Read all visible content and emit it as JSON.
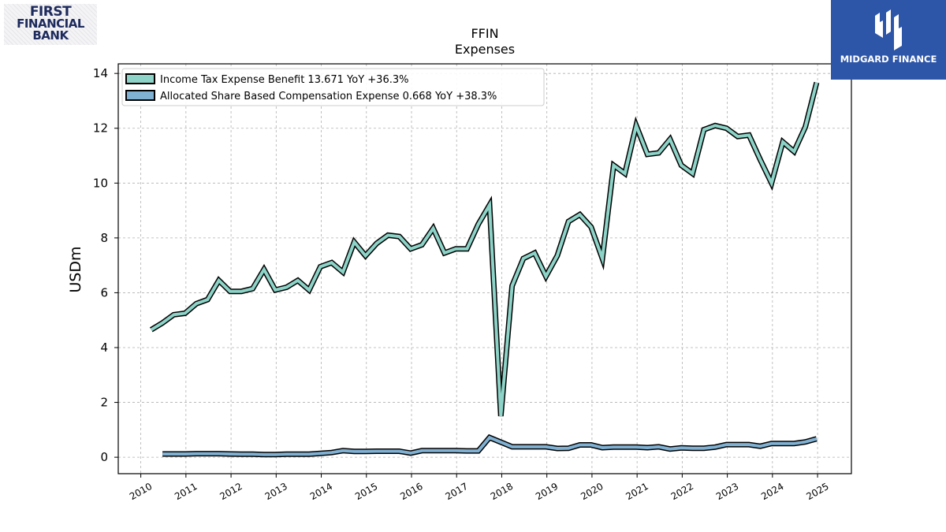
{
  "logos": {
    "left": [
      "FIRST",
      "FINANCIAL",
      "BANK"
    ],
    "right": "MIDGARD FINANCE"
  },
  "chart_data": {
    "type": "line",
    "title": "FFIN",
    "subtitle": "Expenses",
    "ylabel": "USDm",
    "xlabel": "",
    "xlim": [
      2009.5,
      2025.75
    ],
    "ylim": [
      -0.6,
      14.35
    ],
    "yticks": [
      0,
      2,
      4,
      6,
      8,
      10,
      12,
      14
    ],
    "xticks": [
      2010,
      2011,
      2012,
      2013,
      2014,
      2015,
      2016,
      2017,
      2018,
      2019,
      2020,
      2021,
      2022,
      2023,
      2024,
      2025
    ],
    "grid": true,
    "legend_position": "top-left",
    "series": [
      {
        "name": "Income Tax Expense Benefit  13.671 YoY +36.3%",
        "color": "#8dd3c7",
        "x": [
          2010.23,
          2010.48,
          2010.73,
          2010.98,
          2011.23,
          2011.48,
          2011.73,
          2011.98,
          2012.23,
          2012.48,
          2012.73,
          2012.98,
          2013.23,
          2013.48,
          2013.73,
          2013.98,
          2014.23,
          2014.48,
          2014.73,
          2014.98,
          2015.23,
          2015.48,
          2015.73,
          2015.98,
          2016.23,
          2016.48,
          2016.73,
          2016.98,
          2017.23,
          2017.48,
          2017.73,
          2017.98,
          2018.23,
          2018.48,
          2018.73,
          2018.98,
          2019.23,
          2019.48,
          2019.73,
          2019.98,
          2020.23,
          2020.48,
          2020.73,
          2020.98,
          2021.23,
          2021.48,
          2021.73,
          2021.98,
          2022.23,
          2022.48,
          2022.73,
          2022.98,
          2023.23,
          2023.48,
          2023.73,
          2023.98,
          2024.23,
          2024.48,
          2024.73,
          2024.98
        ],
        "values": [
          4.65,
          4.9,
          5.2,
          5.25,
          5.6,
          5.75,
          6.45,
          6.05,
          6.05,
          6.15,
          6.85,
          6.1,
          6.2,
          6.45,
          6.1,
          6.95,
          7.1,
          6.75,
          7.85,
          7.35,
          7.8,
          8.1,
          8.05,
          7.6,
          7.75,
          8.35,
          7.45,
          7.6,
          7.6,
          8.5,
          9.2,
          1.5,
          6.25,
          7.25,
          7.45,
          6.6,
          7.35,
          8.6,
          8.85,
          8.4,
          7.25,
          10.65,
          10.35,
          12.1,
          11.05,
          11.1,
          11.6,
          10.65,
          10.35,
          11.95,
          12.1,
          12.0,
          11.7,
          11.75,
          10.85,
          10.0,
          11.5,
          11.15,
          12.05,
          13.67
        ]
      },
      {
        "name": "Allocated Share Based Compensation Expense  0.668 YoY +38.3%",
        "color": "#80b1d3",
        "x": [
          2010.48,
          2010.73,
          2010.98,
          2011.23,
          2011.48,
          2011.73,
          2011.98,
          2012.23,
          2012.48,
          2012.73,
          2012.98,
          2013.23,
          2013.48,
          2013.73,
          2013.98,
          2014.23,
          2014.48,
          2014.73,
          2014.98,
          2015.23,
          2015.48,
          2015.73,
          2015.98,
          2016.23,
          2016.48,
          2016.73,
          2016.98,
          2017.23,
          2017.48,
          2017.73,
          2017.98,
          2018.23,
          2018.48,
          2018.73,
          2018.98,
          2019.23,
          2019.48,
          2019.73,
          2019.98,
          2020.23,
          2020.48,
          2020.73,
          2020.98,
          2021.23,
          2021.48,
          2021.73,
          2021.98,
          2022.23,
          2022.48,
          2022.73,
          2022.98,
          2023.23,
          2023.48,
          2023.73,
          2023.98,
          2024.23,
          2024.48,
          2024.73,
          2024.98
        ],
        "values": [
          0.12,
          0.12,
          0.12,
          0.13,
          0.13,
          0.13,
          0.12,
          0.11,
          0.11,
          0.1,
          0.1,
          0.11,
          0.11,
          0.11,
          0.14,
          0.17,
          0.24,
          0.21,
          0.21,
          0.22,
          0.22,
          0.22,
          0.15,
          0.24,
          0.24,
          0.24,
          0.24,
          0.23,
          0.23,
          0.72,
          0.55,
          0.38,
          0.38,
          0.38,
          0.38,
          0.32,
          0.33,
          0.45,
          0.45,
          0.35,
          0.37,
          0.37,
          0.37,
          0.35,
          0.38,
          0.3,
          0.34,
          0.33,
          0.33,
          0.37,
          0.46,
          0.46,
          0.46,
          0.4,
          0.5,
          0.5,
          0.5,
          0.56,
          0.67
        ]
      }
    ]
  }
}
